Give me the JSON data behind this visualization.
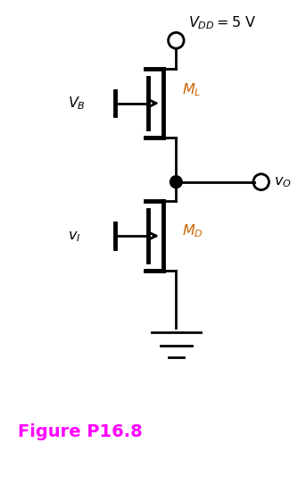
{
  "fig_width": 3.34,
  "fig_height": 5.43,
  "dpi": 100,
  "bg_color": "#ffffff",
  "line_color": "#000000",
  "figure_label": "Figure P16.8",
  "figure_label_color": "#ff00ff",
  "figure_label_fontsize": 14,
  "vdd_label": "$V_{DD} = 5\\ \\mathrm{V}$",
  "vb_label": "$V_B$",
  "vi_label": "$v_I$",
  "ml_label": "$M_L$",
  "md_label": "$M_D$",
  "vo_label": "$v_O$"
}
